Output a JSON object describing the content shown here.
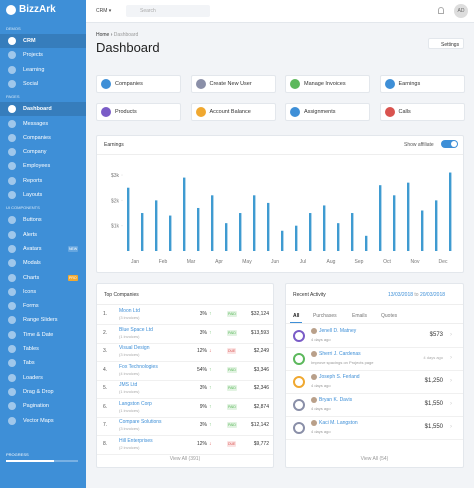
{
  "sidebar": {
    "brand": "BizzArk",
    "sections": [
      {
        "title": "DEMOS",
        "items": [
          {
            "label": "CRM"
          },
          {
            "label": "Projects"
          },
          {
            "label": "Learning"
          },
          {
            "label": "Social"
          }
        ]
      },
      {
        "title": "PAGES",
        "items": [
          {
            "label": "Dashboard"
          },
          {
            "label": "Messages"
          },
          {
            "label": "Companies"
          },
          {
            "label": "Company"
          },
          {
            "label": "Employees"
          },
          {
            "label": "Reports"
          },
          {
            "label": "Layouts"
          }
        ]
      },
      {
        "title": "UI COMPONENTS",
        "items": [
          {
            "label": "Buttons"
          },
          {
            "label": "Alerts"
          },
          {
            "label": "Avatars",
            "badge": "NEW"
          },
          {
            "label": "Modals"
          },
          {
            "label": "Charts",
            "badge": "PRO"
          },
          {
            "label": "Icons"
          },
          {
            "label": "Forms"
          },
          {
            "label": "Range Sliders"
          },
          {
            "label": "Time & Date"
          },
          {
            "label": "Tables"
          },
          {
            "label": "Tabs"
          },
          {
            "label": "Loaders"
          },
          {
            "label": "Drag & Drop"
          },
          {
            "label": "Pagination"
          },
          {
            "label": "Vector Maps"
          }
        ]
      }
    ],
    "progress": "PROGRESS"
  },
  "header": {
    "dropdown": "CRM ▾",
    "search": "Search",
    "avatar": "AD"
  },
  "breadcrumb": [
    "Home",
    "Dashboard"
  ],
  "title": "Dashboard",
  "settings": "Settings",
  "shortcuts": [
    "Companies",
    "Create New User",
    "Manage Invoices",
    "Earnings",
    "Products",
    "Account Balance",
    "Assignments",
    "Calls"
  ],
  "toggle_label": "Show affiliate",
  "chart_data": {
    "type": "bar",
    "title": "Earnings",
    "categories": [
      "Jan",
      "Feb",
      "Mar",
      "Apr",
      "May",
      "Jun",
      "Jul",
      "Aug",
      "Sep",
      "Oct",
      "Nov",
      "Dec"
    ],
    "series": [
      {
        "color": "#3f9bd1",
        "values": [
          2500,
          2000,
          2900,
          2200,
          1500,
          1900,
          1000,
          1800,
          1500,
          2600,
          2700,
          2000
        ]
      },
      {
        "color": "#3f9bd1",
        "values": [
          1500,
          1400,
          1700,
          1100,
          2200,
          800,
          1500,
          1100,
          600,
          2200,
          1600,
          3100
        ]
      }
    ],
    "ylim": [
      0,
      3200
    ],
    "yticks": [
      {
        "value": 1000,
        "label": "$1k"
      },
      {
        "value": 2000,
        "label": "$2k"
      },
      {
        "value": 3000,
        "label": "$3k"
      }
    ],
    "grid": false
  },
  "top_companies": {
    "title": "Top Companies",
    "rows": [
      {
        "rank": "1.",
        "name": "Moon Ltd",
        "invoices": "(3 invoices)",
        "pct": "3%",
        "status": "PAID",
        "amount": "$32,124"
      },
      {
        "rank": "2.",
        "name": "Blue Space Ltd",
        "invoices": "(1 invoices)",
        "pct": "3%",
        "status": "PAID",
        "amount": "$13,593"
      },
      {
        "rank": "3.",
        "name": "Visual Design",
        "invoices": "(3 invoices)",
        "pct": "12%",
        "status": "DUE",
        "amount": "$2,249"
      },
      {
        "rank": "4.",
        "name": "Fox Technologies",
        "invoices": "(4 invoices)",
        "pct": "54%",
        "status": "PAID",
        "amount": "$3,346"
      },
      {
        "rank": "5.",
        "name": "JMS Ltd",
        "invoices": "(1 invoices)",
        "pct": "3%",
        "status": "PAID",
        "amount": "$2,346"
      },
      {
        "rank": "6.",
        "name": "Langston Corp",
        "invoices": "(1 invoices)",
        "pct": "9%",
        "status": "PAID",
        "amount": "$2,874"
      },
      {
        "rank": "7.",
        "name": "Compare Solutions",
        "invoices": "(3 invoices)",
        "pct": "3%",
        "status": "PAID",
        "amount": "$12,142"
      },
      {
        "rank": "8.",
        "name": "Hill Enterprises",
        "invoices": "(2 invoices)",
        "pct": "12%",
        "status": "DUE",
        "amount": "$9,772"
      }
    ],
    "footer": "View All (391)"
  },
  "recent_activity": {
    "title": "Recent Activity",
    "date_from": "13/03/2018",
    "date_sep": "to",
    "date_to": "20/03/2018",
    "tabs": [
      "All",
      "Purchases",
      "Emails",
      "Quotes"
    ],
    "items": [
      {
        "name": "Jenell D. Matney",
        "note": "4 days ago",
        "amount": "$573"
      },
      {
        "name": "Sherri J. Cardenas",
        "note": "Improve spacings on Projects page",
        "amount": "4 days ago"
      },
      {
        "name": "Joseph S. Ferland",
        "note": "4 days ago",
        "amount": "$1,250"
      },
      {
        "name": "Bryan K. Davis",
        "note": "4 days ago",
        "amount": "$1,550"
      },
      {
        "name": "Kaci M. Langston",
        "note": "4 days ago",
        "amount": "$1,550"
      }
    ],
    "footer": "View All (54)"
  }
}
